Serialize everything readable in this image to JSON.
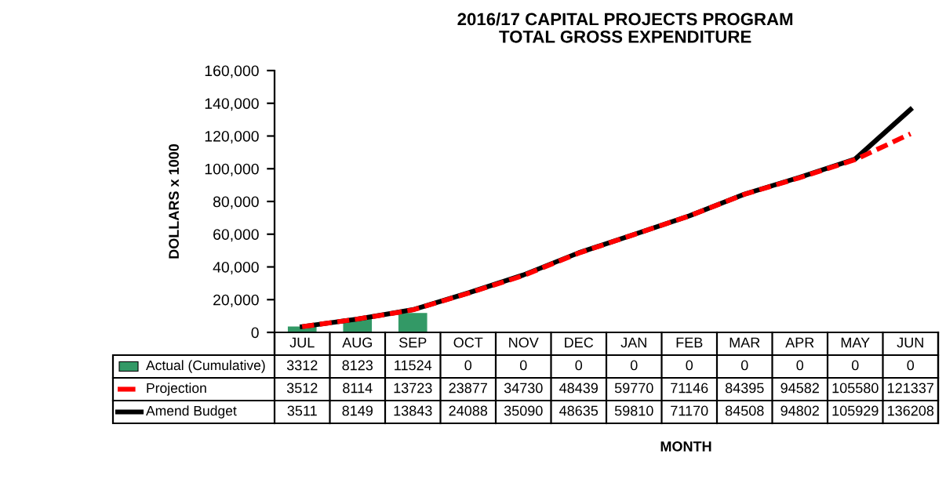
{
  "chart_data": {
    "type": "bar",
    "title": "2016/17 CAPITAL PROJECTS PROGRAM\nTOTAL GROSS EXPENDITURE",
    "annotations": [
      "MONTH"
    ],
    "ylabel": "DOLLARS x 1000",
    "categories": [
      "JUL",
      "AUG",
      "SEP",
      "OCT",
      "NOV",
      "DEC",
      "JAN",
      "FEB",
      "MAR",
      "APR",
      "MAY",
      "JUN"
    ],
    "series": [
      {
        "name": "Actual (Cumulative)",
        "color": "#339966",
        "values": [
          3312,
          8123,
          11524,
          0,
          0,
          0,
          0,
          0,
          0,
          0,
          0,
          0
        ]
      },
      {
        "name": "Projection",
        "type": "line",
        "color": "#ff0000",
        "line_style": "dashed",
        "values": [
          3512,
          8114,
          13723,
          23877,
          34730,
          48439,
          59770,
          71146,
          84395,
          94582,
          105580,
          121337
        ]
      },
      {
        "name": "Amend Budget",
        "type": "line",
        "color": "#000000",
        "line_style": "solid",
        "values": [
          3511,
          8149,
          13843,
          24088,
          35090,
          48635,
          59810,
          71170,
          84508,
          94802,
          105929,
          136208
        ]
      }
    ],
    "ylim": [
      0,
      160000
    ],
    "yticks": [
      {
        "value": 0,
        "label": "0"
      },
      {
        "value": 20000,
        "label": "20,000"
      },
      {
        "value": 40000,
        "label": "40,000"
      },
      {
        "value": 60000,
        "label": "60,000"
      },
      {
        "value": 80000,
        "label": "80,000"
      },
      {
        "value": 100000,
        "label": "100,000"
      },
      {
        "value": 120000,
        "label": "120,000"
      },
      {
        "value": 140000,
        "label": "140,000"
      },
      {
        "value": 160000,
        "label": "160,000"
      }
    ],
    "data_labels": true,
    "legend": "bottom left",
    "grid": false
  }
}
